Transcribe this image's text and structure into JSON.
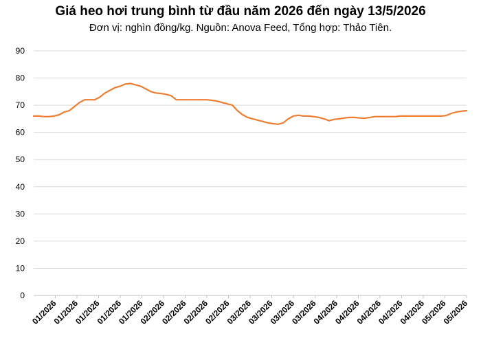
{
  "chart_data": {
    "type": "line",
    "title": "Giá heo hơi trung bình từ đầu năm 2026 đến ngày 13/5/2026",
    "subtitle": "Đơn vị: nghìn đồng/kg. Nguồn: Anova Feed, Tổng hợp: Thảo Tiên.",
    "xlabel": "",
    "ylabel": "",
    "ylim": [
      0,
      90
    ],
    "yticks": [
      "0",
      "10",
      "20",
      "30",
      "40",
      "50",
      "60",
      "70",
      "80",
      "90"
    ],
    "xticks": [
      "01/2026",
      "01/2026",
      "01/2026",
      "01/2026",
      "01/2026",
      "02/2026",
      "02/2026",
      "02/2026",
      "02/2026",
      "03/2026",
      "03/2026",
      "03/2026",
      "03/2026",
      "04/2026",
      "04/2026",
      "04/2026",
      "04/2026",
      "04/2026",
      "05/2026",
      "05/2026"
    ],
    "grid": true,
    "legend": "none",
    "color": "#ED7D31",
    "series": [
      {
        "values": [
          66.0,
          66.0,
          65.8,
          65.8,
          66.0,
          66.5,
          67.5,
          68.0,
          69.5,
          71.0,
          72.0,
          72.0,
          72.0,
          73.0,
          74.5,
          75.5,
          76.5,
          77.0,
          77.8,
          78.0,
          77.5,
          77.0,
          76.0,
          75.0,
          74.5,
          74.3,
          74.0,
          73.5,
          72.0,
          72.0,
          72.0,
          72.0,
          72.0,
          72.0,
          72.0,
          71.8,
          71.5,
          71.0,
          70.5,
          70.0,
          68.0,
          66.5,
          65.5,
          65.0,
          64.5,
          64.0,
          63.5,
          63.2,
          63.0,
          63.5,
          65.0,
          66.0,
          66.3,
          66.0,
          66.0,
          65.8,
          65.5,
          65.0,
          64.3,
          64.8,
          65.0,
          65.3,
          65.5,
          65.5,
          65.3,
          65.2,
          65.5,
          65.8,
          65.8,
          65.8,
          65.8,
          65.8,
          66.0,
          66.0,
          66.0,
          66.0,
          66.0,
          66.0,
          66.0,
          66.0,
          66.0,
          66.2,
          67.0,
          67.5,
          67.8,
          68.0
        ]
      }
    ]
  }
}
